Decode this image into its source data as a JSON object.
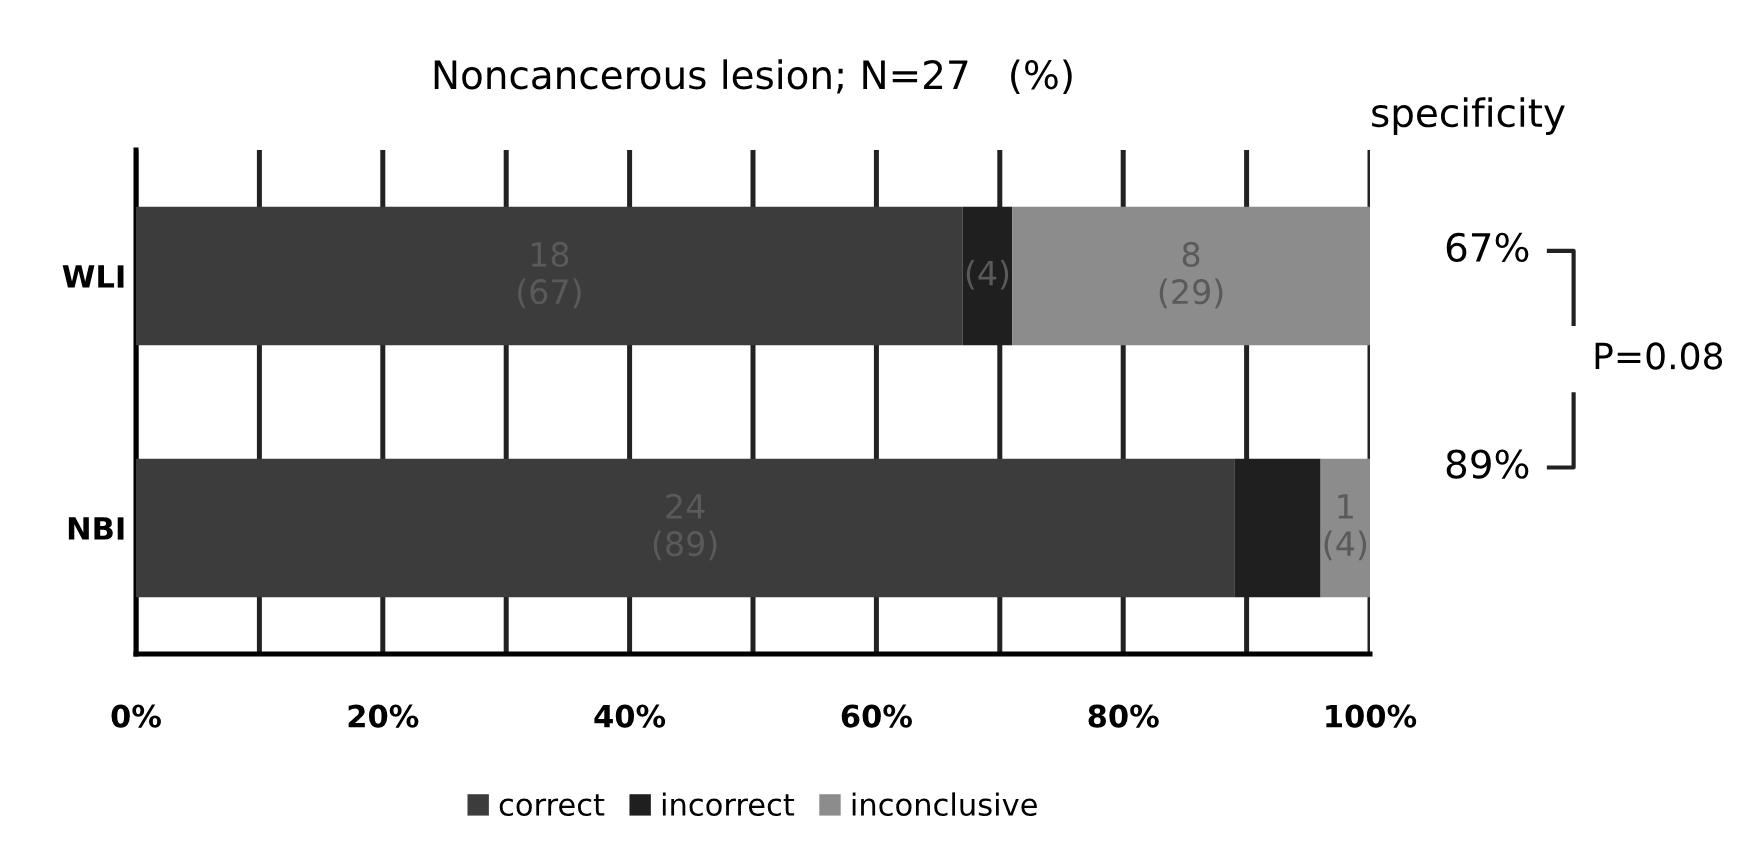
{
  "chart_data": {
    "type": "bar",
    "orientation": "horizontal",
    "stacked": true,
    "title": "Noncancerous lesion; N=27   (%)",
    "categories": [
      "WLI",
      "NBI"
    ],
    "series": [
      {
        "name": "correct",
        "color": "#3c3c3c",
        "values": [
          67,
          89
        ],
        "value_labels": [
          "18\n(67)",
          "24\n(89)"
        ]
      },
      {
        "name": "incorrect",
        "color": "#1f1f1f",
        "values": [
          4,
          7
        ],
        "value_labels": [
          "(4)",
          null
        ]
      },
      {
        "name": "inconclusive",
        "color": "#8c8c8c",
        "values": [
          29,
          4
        ],
        "value_labels": [
          "8\n(29)",
          "1\n(4)"
        ]
      }
    ],
    "xlim": [
      0,
      100
    ],
    "xticks": [
      {
        "value": 0,
        "label": "0%"
      },
      {
        "value": 10,
        "label": null
      },
      {
        "value": 20,
        "label": "20%"
      },
      {
        "value": 30,
        "label": null
      },
      {
        "value": 40,
        "label": "40%"
      },
      {
        "value": 50,
        "label": null
      },
      {
        "value": 60,
        "label": "60%"
      },
      {
        "value": 70,
        "label": null
      },
      {
        "value": 80,
        "label": "80%"
      },
      {
        "value": 90,
        "label": null
      },
      {
        "value": 100,
        "label": "100%"
      }
    ],
    "grid": "x",
    "legend": "bottom",
    "annotations": [
      "specificity",
      "67%",
      "89%",
      "P=0.08"
    ]
  }
}
